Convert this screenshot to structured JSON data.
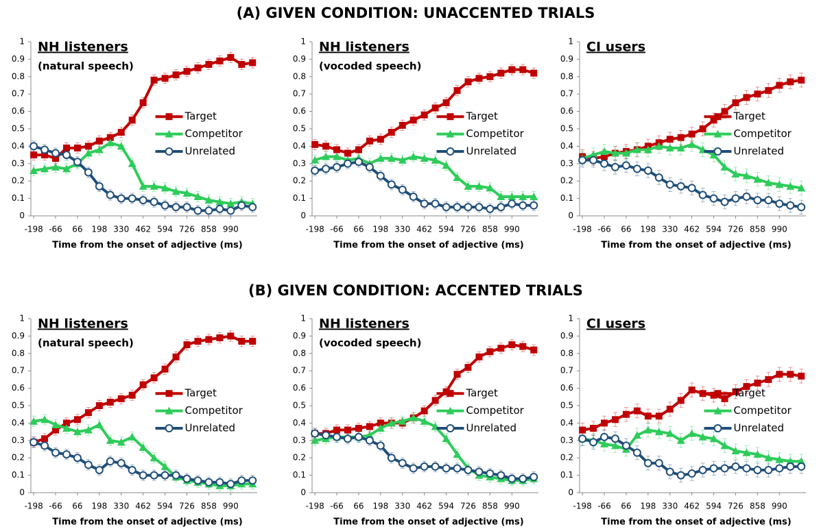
{
  "headings": [
    "(A) GIVEN CONDITION: UNACCENTED TRIALS",
    "(B) GIVEN CONDITION: ACCENTED TRIALS"
  ],
  "chart_data": [
    {
      "type": "line",
      "title": "NH listeners",
      "subtitle": "(natural speech)",
      "xlabel": "Time from the onset of adjective (ms)",
      "x": [
        -198,
        -132,
        -66,
        0,
        66,
        132,
        198,
        264,
        330,
        396,
        462,
        528,
        594,
        660,
        726,
        792,
        858,
        924,
        990,
        1056,
        1122
      ],
      "xlim": [
        -215,
        1150
      ],
      "xticks": [
        -198,
        -66,
        66,
        198,
        330,
        462,
        594,
        726,
        858,
        990
      ],
      "ylim": [
        0,
        1
      ],
      "yticks": [
        0,
        0.1,
        0.2,
        0.3,
        0.4,
        0.5,
        0.6,
        0.7,
        0.8,
        0.9,
        1
      ],
      "error": 0.03,
      "legend": "right",
      "series": [
        {
          "name": "Target",
          "color": "#c00000",
          "marker": "square",
          "values": [
            0.35,
            0.35,
            0.33,
            0.39,
            0.39,
            0.4,
            0.43,
            0.45,
            0.48,
            0.55,
            0.65,
            0.78,
            0.79,
            0.81,
            0.83,
            0.85,
            0.87,
            0.89,
            0.91,
            0.87,
            0.88
          ]
        },
        {
          "name": "Competitor",
          "color": "#2ecc5a",
          "marker": "triangle",
          "values": [
            0.26,
            0.27,
            0.28,
            0.27,
            0.3,
            0.36,
            0.38,
            0.42,
            0.4,
            0.3,
            0.17,
            0.17,
            0.16,
            0.14,
            0.13,
            0.11,
            0.09,
            0.08,
            0.07,
            0.08,
            0.07
          ]
        },
        {
          "name": "Unrelated",
          "color": "#1f4e79",
          "marker": "circle",
          "values": [
            0.4,
            0.38,
            0.36,
            0.35,
            0.31,
            0.25,
            0.17,
            0.12,
            0.1,
            0.1,
            0.09,
            0.08,
            0.06,
            0.05,
            0.05,
            0.03,
            0.03,
            0.04,
            0.03,
            0.06,
            0.05
          ]
        }
      ]
    },
    {
      "type": "line",
      "title": "NH listeners",
      "subtitle": "(vocoded speech)",
      "xlabel": "Time from the onset of adjective (ms)",
      "x": [
        -198,
        -132,
        -66,
        0,
        66,
        132,
        198,
        264,
        330,
        396,
        462,
        528,
        594,
        660,
        726,
        792,
        858,
        924,
        990,
        1056,
        1122
      ],
      "xlim": [
        -215,
        1150
      ],
      "xticks": [
        -198,
        -66,
        66,
        198,
        330,
        462,
        594,
        726,
        858,
        990
      ],
      "ylim": [
        0,
        1
      ],
      "yticks": [
        0,
        0.1,
        0.2,
        0.3,
        0.4,
        0.5,
        0.6,
        0.7,
        0.8,
        0.9,
        1
      ],
      "error": 0.03,
      "legend": "right",
      "series": [
        {
          "name": "Target",
          "color": "#c00000",
          "marker": "square",
          "values": [
            0.41,
            0.4,
            0.38,
            0.36,
            0.38,
            0.43,
            0.44,
            0.48,
            0.52,
            0.55,
            0.58,
            0.62,
            0.65,
            0.72,
            0.77,
            0.79,
            0.8,
            0.82,
            0.84,
            0.84,
            0.82
          ]
        },
        {
          "name": "Competitor",
          "color": "#2ecc5a",
          "marker": "triangle",
          "values": [
            0.32,
            0.34,
            0.34,
            0.32,
            0.33,
            0.3,
            0.33,
            0.33,
            0.32,
            0.34,
            0.33,
            0.32,
            0.29,
            0.22,
            0.17,
            0.17,
            0.16,
            0.11,
            0.11,
            0.11,
            0.11
          ]
        },
        {
          "name": "Unrelated",
          "color": "#1f4e79",
          "marker": "circle",
          "values": [
            0.26,
            0.27,
            0.28,
            0.3,
            0.31,
            0.28,
            0.23,
            0.18,
            0.15,
            0.11,
            0.07,
            0.07,
            0.05,
            0.05,
            0.05,
            0.05,
            0.04,
            0.05,
            0.07,
            0.06,
            0.06
          ]
        }
      ]
    },
    {
      "type": "line",
      "title": "CI users",
      "xlabel": "Time from the onset of adjective (ms)",
      "x": [
        -198,
        -132,
        -66,
        0,
        66,
        132,
        198,
        264,
        330,
        396,
        462,
        528,
        594,
        660,
        726,
        792,
        858,
        924,
        990,
        1056,
        1122
      ],
      "xlim": [
        -215,
        1150
      ],
      "xticks": [
        -198,
        -66,
        66,
        198,
        330,
        462,
        594,
        726,
        858,
        990
      ],
      "ylim": [
        0,
        1
      ],
      "yticks": [
        0,
        0.1,
        0.2,
        0.3,
        0.4,
        0.5,
        0.6,
        0.7,
        0.8,
        0.9,
        1
      ],
      "error": 0.04,
      "legend": "right",
      "series": [
        {
          "name": "Target",
          "color": "#c00000",
          "marker": "square",
          "values": [
            0.34,
            0.33,
            0.34,
            0.36,
            0.37,
            0.38,
            0.4,
            0.42,
            0.44,
            0.45,
            0.47,
            0.5,
            0.55,
            0.6,
            0.65,
            0.68,
            0.7,
            0.72,
            0.75,
            0.77,
            0.78
          ]
        },
        {
          "name": "Competitor",
          "color": "#2ecc5a",
          "marker": "triangle",
          "values": [
            0.33,
            0.35,
            0.37,
            0.36,
            0.36,
            0.38,
            0.38,
            0.4,
            0.39,
            0.39,
            0.41,
            0.38,
            0.35,
            0.28,
            0.24,
            0.23,
            0.21,
            0.19,
            0.18,
            0.17,
            0.16
          ]
        },
        {
          "name": "Unrelated",
          "color": "#1f4e79",
          "marker": "circle",
          "values": [
            0.32,
            0.32,
            0.3,
            0.28,
            0.29,
            0.27,
            0.26,
            0.22,
            0.18,
            0.17,
            0.16,
            0.12,
            0.1,
            0.08,
            0.1,
            0.11,
            0.09,
            0.09,
            0.07,
            0.06,
            0.05
          ]
        }
      ]
    },
    {
      "type": "line",
      "title": "NH listeners",
      "subtitle": "(natural speech)",
      "xlabel": "Time from the onset of adjective (ms)",
      "x": [
        -198,
        -132,
        -66,
        0,
        66,
        132,
        198,
        264,
        330,
        396,
        462,
        528,
        594,
        660,
        726,
        792,
        858,
        924,
        990,
        1056,
        1122
      ],
      "xlim": [
        -215,
        1150
      ],
      "xticks": [
        -198,
        -66,
        66,
        198,
        330,
        462,
        594,
        726,
        858,
        990
      ],
      "ylim": [
        0,
        1
      ],
      "yticks": [
        0,
        0.1,
        0.2,
        0.3,
        0.4,
        0.5,
        0.6,
        0.7,
        0.8,
        0.9,
        1
      ],
      "error": 0.03,
      "legend": "right",
      "series": [
        {
          "name": "Target",
          "color": "#c00000",
          "marker": "square",
          "values": [
            0.29,
            0.31,
            0.36,
            0.4,
            0.42,
            0.46,
            0.5,
            0.52,
            0.54,
            0.56,
            0.62,
            0.66,
            0.71,
            0.78,
            0.85,
            0.87,
            0.88,
            0.89,
            0.9,
            0.87,
            0.87
          ]
        },
        {
          "name": "Competitor",
          "color": "#2ecc5a",
          "marker": "triangle",
          "values": [
            0.41,
            0.42,
            0.39,
            0.37,
            0.35,
            0.36,
            0.39,
            0.3,
            0.29,
            0.32,
            0.26,
            0.2,
            0.15,
            0.09,
            0.07,
            0.06,
            0.05,
            0.04,
            0.04,
            0.05,
            0.05
          ]
        },
        {
          "name": "Unrelated",
          "color": "#1f4e79",
          "marker": "circle",
          "values": [
            0.29,
            0.27,
            0.23,
            0.22,
            0.2,
            0.16,
            0.13,
            0.18,
            0.17,
            0.13,
            0.1,
            0.1,
            0.1,
            0.1,
            0.08,
            0.07,
            0.06,
            0.06,
            0.05,
            0.07,
            0.07
          ]
        }
      ]
    },
    {
      "type": "line",
      "title": "NH listeners",
      "subtitle": "(vocoded speech)",
      "xlabel": "Time from the onset of adjective (ms)",
      "x": [
        -198,
        -132,
        -66,
        0,
        66,
        132,
        198,
        264,
        330,
        396,
        462,
        528,
        594,
        660,
        726,
        792,
        858,
        924,
        990,
        1056,
        1122
      ],
      "xlim": [
        -215,
        1150
      ],
      "xticks": [
        -198,
        -66,
        66,
        198,
        330,
        462,
        594,
        726,
        858,
        990
      ],
      "ylim": [
        0,
        1
      ],
      "yticks": [
        0,
        0.1,
        0.2,
        0.3,
        0.4,
        0.5,
        0.6,
        0.7,
        0.8,
        0.9,
        1
      ],
      "error": 0.03,
      "legend": "right",
      "series": [
        {
          "name": "Target",
          "color": "#c00000",
          "marker": "square",
          "values": [
            0.34,
            0.34,
            0.36,
            0.36,
            0.37,
            0.38,
            0.4,
            0.4,
            0.4,
            0.43,
            0.47,
            0.53,
            0.58,
            0.68,
            0.72,
            0.78,
            0.81,
            0.83,
            0.85,
            0.84,
            0.82
          ]
        },
        {
          "name": "Competitor",
          "color": "#2ecc5a",
          "marker": "triangle",
          "values": [
            0.3,
            0.31,
            0.32,
            0.32,
            0.32,
            0.33,
            0.37,
            0.4,
            0.41,
            0.43,
            0.41,
            0.38,
            0.31,
            0.22,
            0.14,
            0.1,
            0.09,
            0.08,
            0.07,
            0.07,
            0.08
          ]
        },
        {
          "name": "Unrelated",
          "color": "#1f4e79",
          "marker": "circle",
          "values": [
            0.34,
            0.33,
            0.32,
            0.31,
            0.32,
            0.3,
            0.27,
            0.2,
            0.17,
            0.14,
            0.15,
            0.15,
            0.14,
            0.14,
            0.13,
            0.12,
            0.11,
            0.1,
            0.08,
            0.08,
            0.09
          ]
        }
      ]
    },
    {
      "type": "line",
      "title": "CI users",
      "xlabel": "Time from the onset of adjective (ms)",
      "x": [
        -198,
        -132,
        -66,
        0,
        66,
        132,
        198,
        264,
        330,
        396,
        462,
        528,
        594,
        660,
        726,
        792,
        858,
        924,
        990,
        1056,
        1122
      ],
      "xlim": [
        -215,
        1150
      ],
      "xticks": [
        -198,
        -66,
        66,
        198,
        330,
        462,
        594,
        726,
        858,
        990
      ],
      "ylim": [
        0,
        1
      ],
      "yticks": [
        0,
        0.1,
        0.2,
        0.3,
        0.4,
        0.5,
        0.6,
        0.7,
        0.8,
        0.9,
        1
      ],
      "error": 0.04,
      "legend": "right",
      "series": [
        {
          "name": "Target",
          "color": "#c00000",
          "marker": "square",
          "values": [
            0.36,
            0.37,
            0.4,
            0.42,
            0.45,
            0.47,
            0.44,
            0.44,
            0.48,
            0.53,
            0.59,
            0.57,
            0.56,
            0.54,
            0.58,
            0.61,
            0.63,
            0.65,
            0.68,
            0.68,
            0.67
          ]
        },
        {
          "name": "Competitor",
          "color": "#2ecc5a",
          "marker": "triangle",
          "values": [
            0.31,
            0.3,
            0.28,
            0.27,
            0.25,
            0.33,
            0.36,
            0.35,
            0.34,
            0.3,
            0.34,
            0.32,
            0.31,
            0.27,
            0.24,
            0.23,
            0.22,
            0.2,
            0.19,
            0.18,
            0.18
          ]
        },
        {
          "name": "Unrelated",
          "color": "#1f4e79",
          "marker": "circle",
          "values": [
            0.31,
            0.29,
            0.32,
            0.31,
            0.27,
            0.23,
            0.17,
            0.17,
            0.12,
            0.1,
            0.11,
            0.13,
            0.14,
            0.14,
            0.15,
            0.14,
            0.13,
            0.13,
            0.14,
            0.15,
            0.15
          ]
        }
      ]
    }
  ]
}
